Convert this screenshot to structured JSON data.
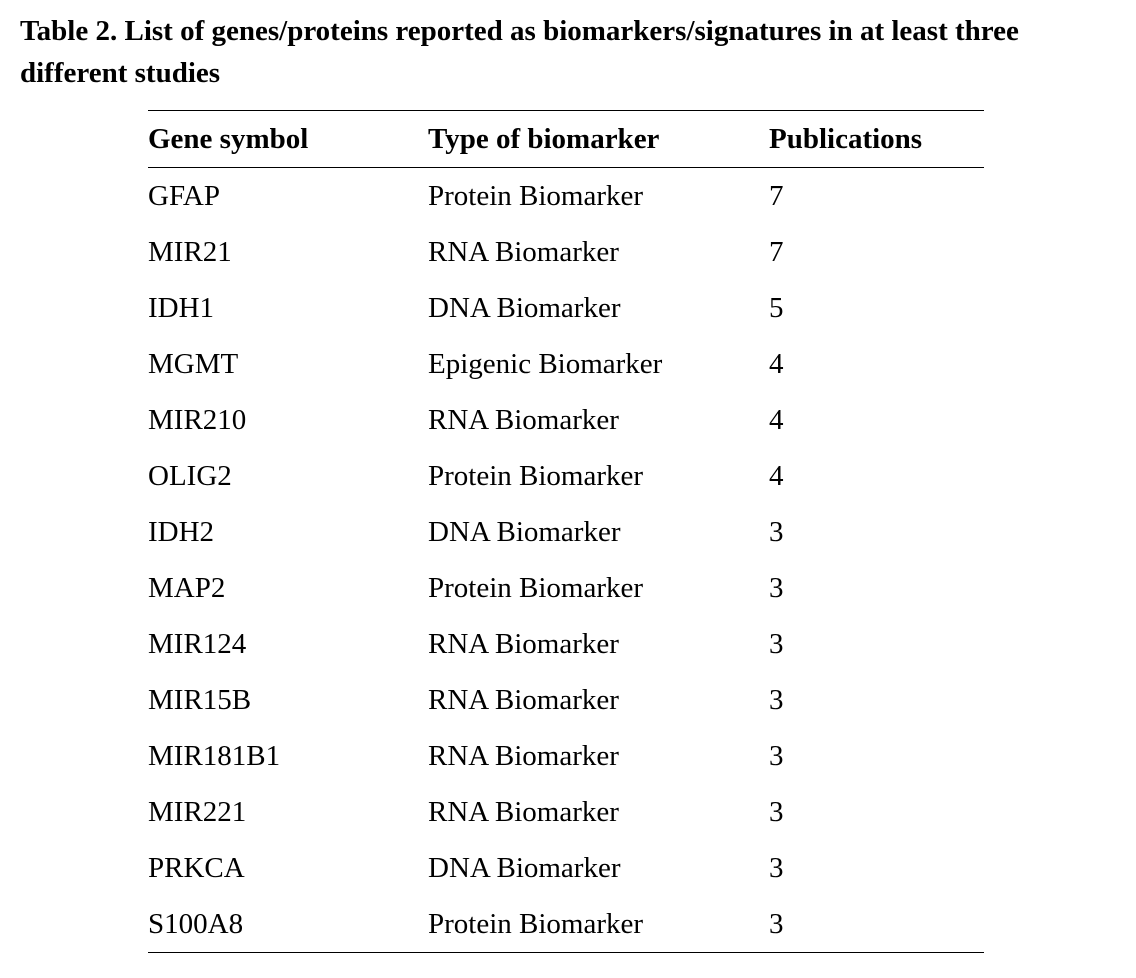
{
  "caption": "Table 2. List of genes/proteins reported as biomarkers/signatures in at least three different studies",
  "table": {
    "headers": [
      "Gene symbol",
      "Type of biomarker",
      "Publications"
    ],
    "rows": [
      [
        "GFAP",
        "Protein Biomarker",
        "7"
      ],
      [
        "MIR21",
        "RNA Biomarker",
        "7"
      ],
      [
        "IDH1",
        "DNA Biomarker",
        "5"
      ],
      [
        "MGMT",
        "Epigenic Biomarker",
        "4"
      ],
      [
        "MIR210",
        "RNA Biomarker",
        "4"
      ],
      [
        "OLIG2",
        "Protein Biomarker",
        "4"
      ],
      [
        "IDH2",
        "DNA Biomarker",
        "3"
      ],
      [
        "MAP2",
        "Protein Biomarker",
        "3"
      ],
      [
        "MIR124",
        "RNA Biomarker",
        "3"
      ],
      [
        "MIR15B",
        "RNA Biomarker",
        "3"
      ],
      [
        "MIR181B1",
        "RNA Biomarker",
        "3"
      ],
      [
        "MIR221",
        "RNA Biomarker",
        "3"
      ],
      [
        "PRKCA",
        "DNA Biomarker",
        "3"
      ],
      [
        "S100A8",
        "Protein Biomarker",
        "3"
      ]
    ]
  }
}
